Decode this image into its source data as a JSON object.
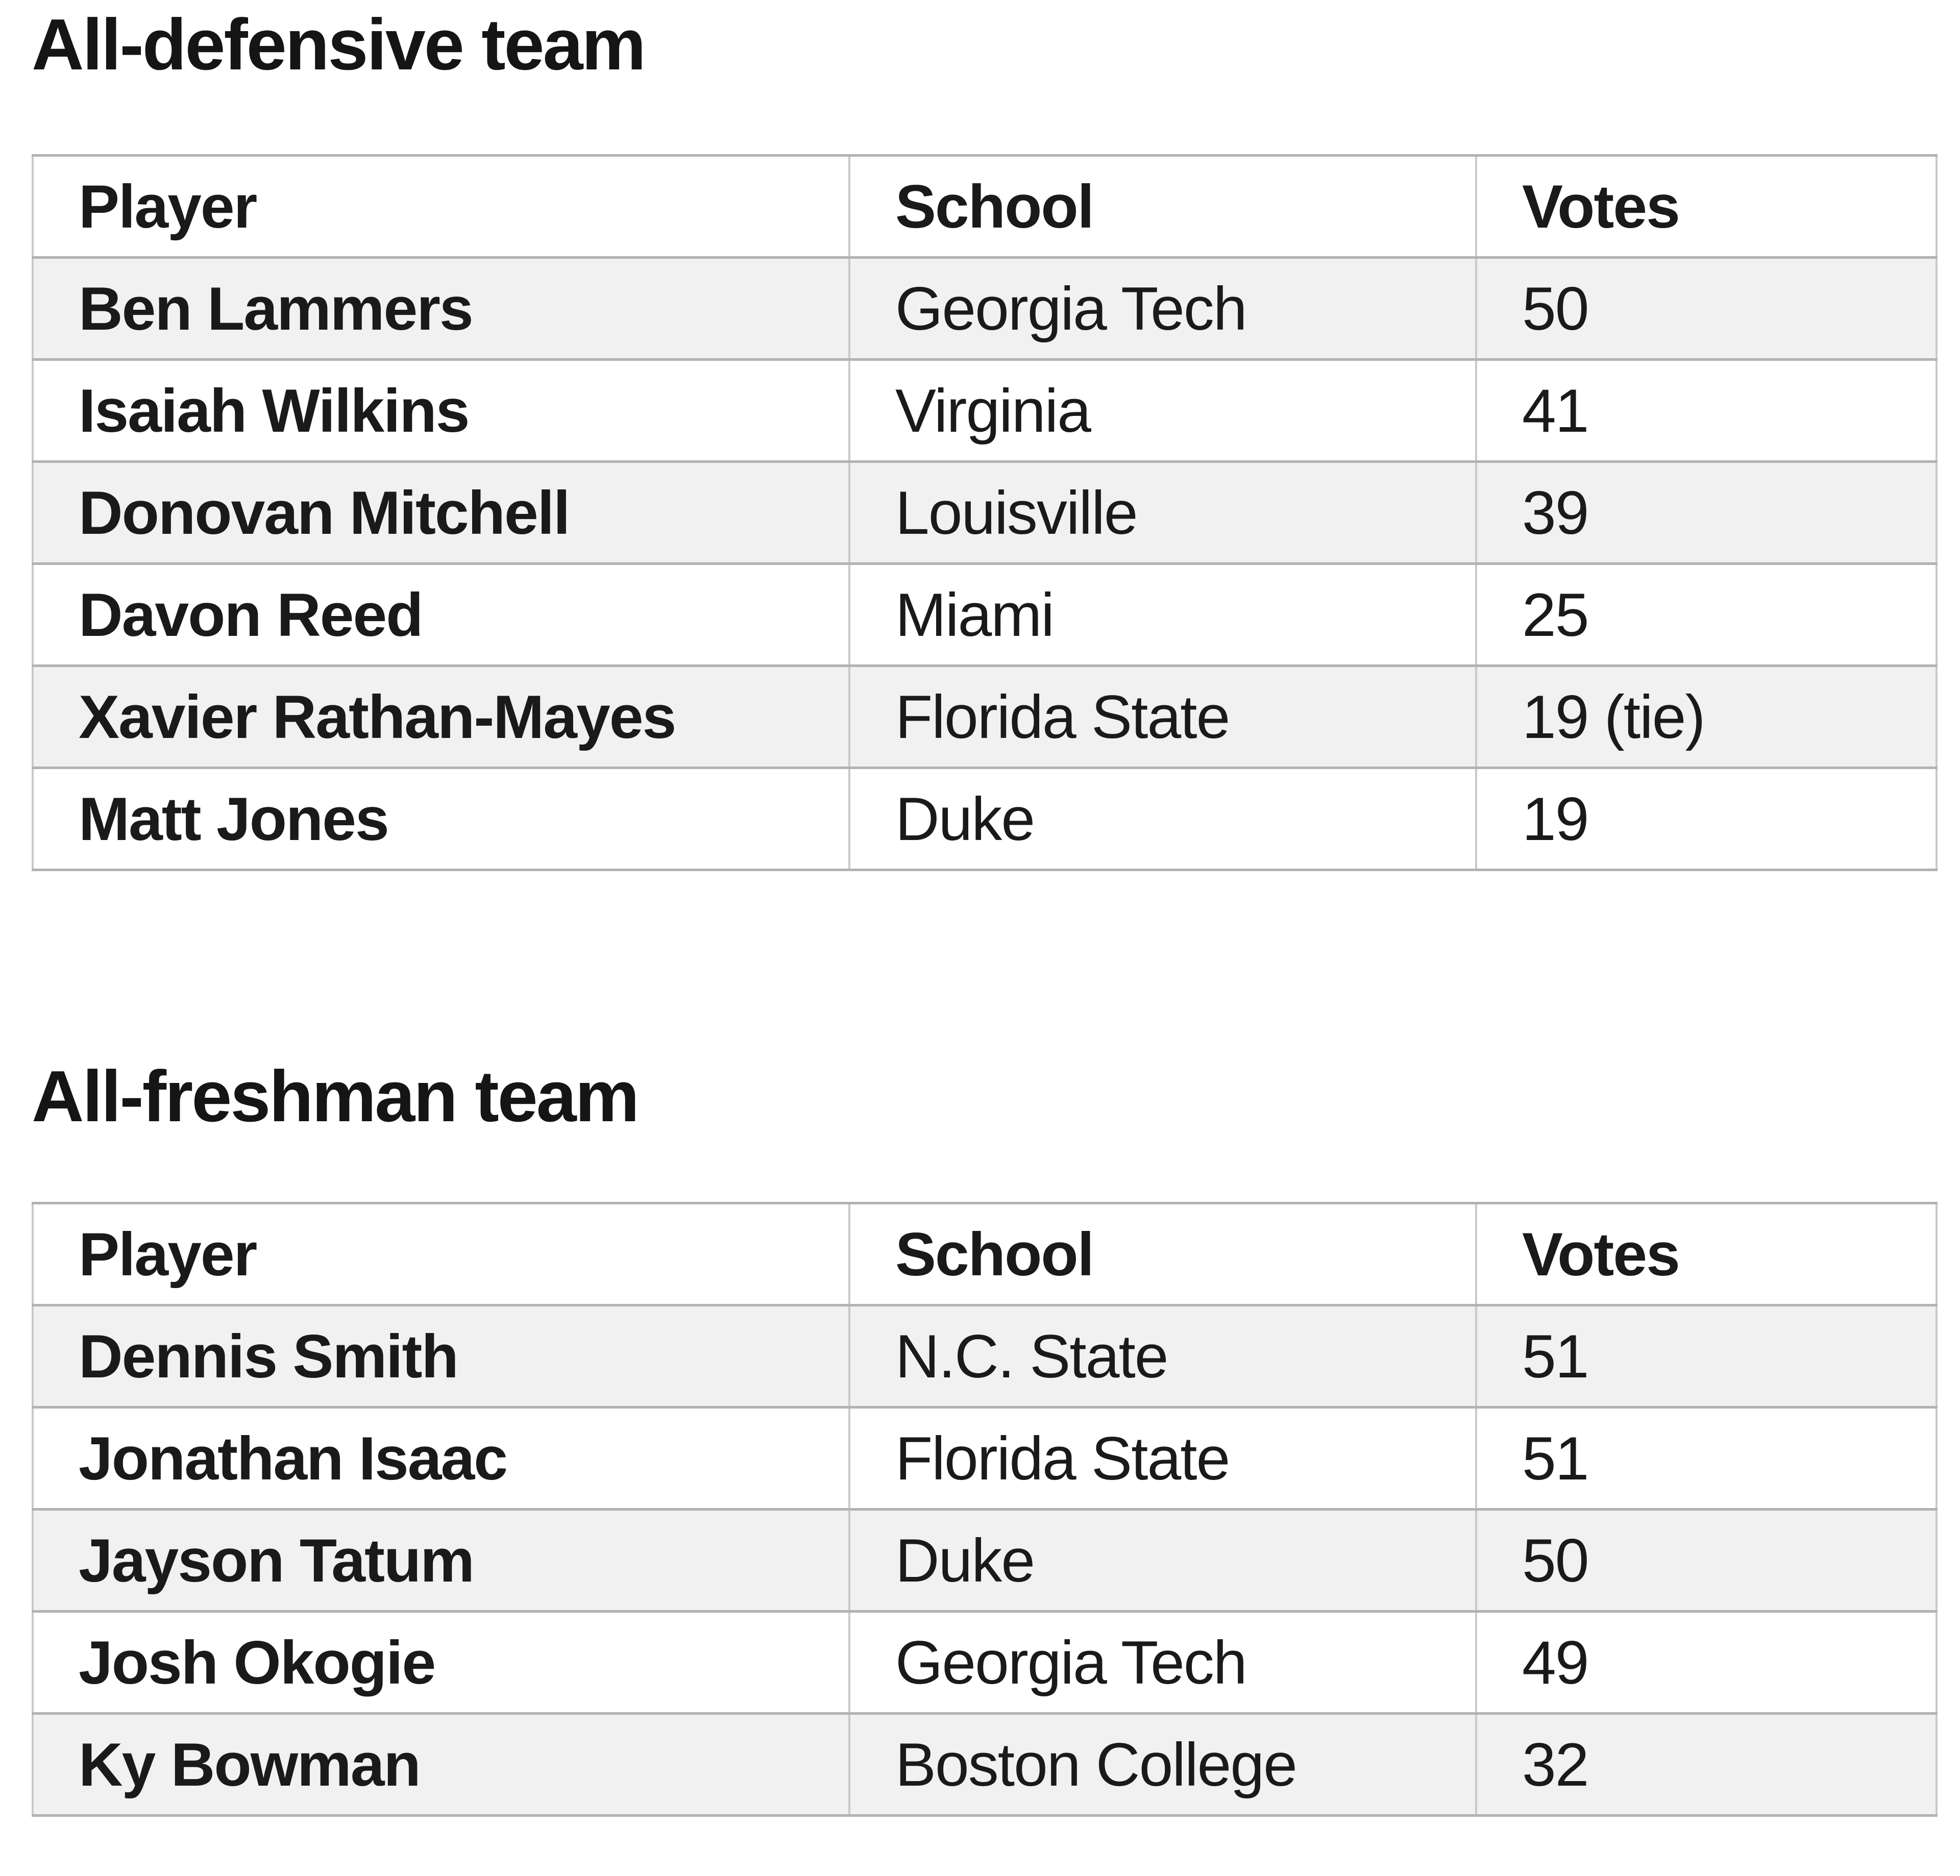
{
  "page": {
    "background": "#ffffff",
    "text_color": "#1a1a1a",
    "zebra_row_color": "#f1f1f1",
    "horizontal_border_color": "#b2b2b2",
    "vertical_border_color": "#c9c9c9"
  },
  "sections": [
    {
      "heading": "All-defensive team",
      "table": {
        "headers": [
          "Player",
          "School",
          "Votes"
        ],
        "rows": [
          [
            "Ben Lammers",
            "Georgia Tech",
            "50"
          ],
          [
            "Isaiah Wilkins",
            "Virginia",
            "41"
          ],
          [
            "Donovan Mitchell",
            "Louisville",
            "39"
          ],
          [
            "Davon Reed",
            "Miami",
            "25"
          ],
          [
            "Xavier Rathan-Mayes",
            "Florida State",
            "19 (tie)"
          ],
          [
            "Matt Jones",
            "Duke",
            "19"
          ]
        ]
      }
    },
    {
      "heading": "All-freshman team",
      "table": {
        "headers": [
          "Player",
          "School",
          "Votes"
        ],
        "rows": [
          [
            "Dennis Smith",
            "N.C. State",
            "51"
          ],
          [
            "Jonathan Isaac",
            "Florida State",
            "51"
          ],
          [
            "Jayson Tatum",
            "Duke",
            "50"
          ],
          [
            "Josh Okogie",
            "Georgia Tech",
            "49"
          ],
          [
            "Ky Bowman",
            "Boston College",
            "32"
          ]
        ]
      }
    }
  ]
}
